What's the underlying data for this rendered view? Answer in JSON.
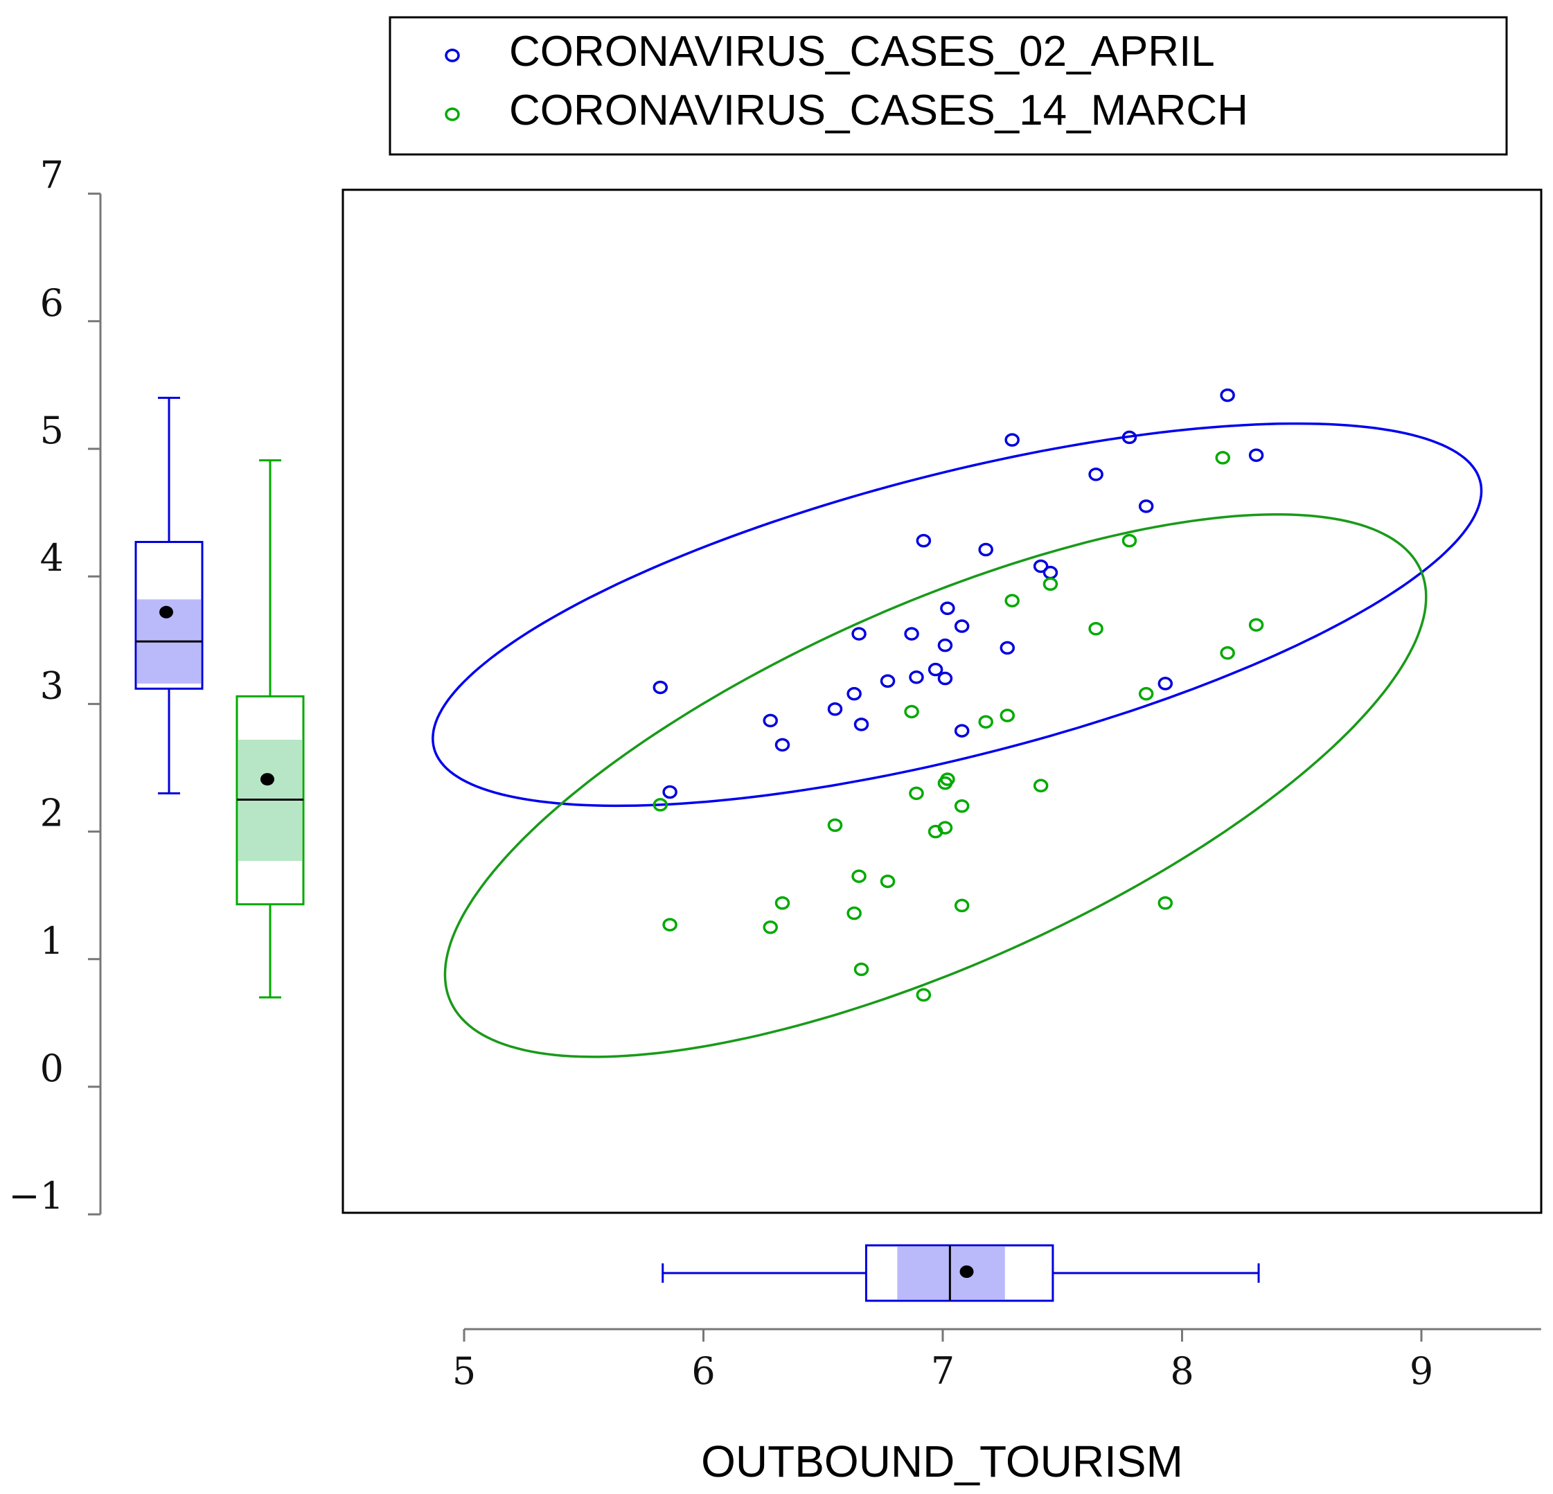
{
  "chart_data": {
    "type": "scatter",
    "xlabel": "OUTBOUND_TOURISM",
    "ylabel": "",
    "xlim": [
      5,
      9.5
    ],
    "ylim": [
      -1,
      7
    ],
    "xticks": [
      5,
      6,
      7,
      8,
      9
    ],
    "yticks": [
      -1,
      0,
      1,
      2,
      3,
      4,
      5,
      6,
      7
    ],
    "xtick_labels": [
      "5",
      "6",
      "7",
      "8",
      "9"
    ],
    "ytick_labels": [
      "−1",
      "0",
      "1",
      "2",
      "3",
      "4",
      "5",
      "6",
      "7"
    ],
    "legend_position": "top",
    "legend": [
      "CORONAVIRUS_CASES_02_APRIL",
      "CORONAVIRUS_CASES_14_MARCH"
    ],
    "series": [
      {
        "name": "CORONAVIRUS_CASES_02_APRIL",
        "color": "#0000dd",
        "points": [
          [
            5.82,
            3.13
          ],
          [
            5.86,
            2.31
          ],
          [
            6.28,
            2.87
          ],
          [
            6.33,
            2.68
          ],
          [
            6.55,
            2.96
          ],
          [
            6.63,
            3.08
          ],
          [
            6.65,
            3.55
          ],
          [
            6.66,
            2.84
          ],
          [
            6.77,
            3.18
          ],
          [
            6.87,
            3.55
          ],
          [
            6.89,
            3.21
          ],
          [
            6.92,
            4.28
          ],
          [
            6.97,
            3.27
          ],
          [
            7.01,
            3.46
          ],
          [
            7.01,
            3.2
          ],
          [
            7.02,
            3.75
          ],
          [
            7.08,
            3.61
          ],
          [
            7.08,
            2.79
          ],
          [
            7.18,
            4.21
          ],
          [
            7.27,
            3.44
          ],
          [
            7.29,
            5.07
          ],
          [
            7.41,
            4.08
          ],
          [
            7.45,
            4.03
          ],
          [
            7.64,
            4.8
          ],
          [
            7.78,
            5.09
          ],
          [
            7.85,
            4.55
          ],
          [
            7.93,
            3.16
          ],
          [
            8.19,
            5.42
          ],
          [
            8.31,
            4.95
          ]
        ],
        "ellipse": {
          "cx": 7.06,
          "cy": 3.7,
          "half_axes": [
            2.45,
            1.02
          ],
          "angle_deg": 29.5
        },
        "boxplot": {
          "min": 2.3,
          "q1": 3.12,
          "median": 3.49,
          "q3": 4.27,
          "max": 5.4,
          "mean": 3.72,
          "ci": [
            3.16,
            3.82
          ]
        }
      },
      {
        "name": "CORONAVIRUS_CASES_14_MARCH",
        "color": "#00aa00",
        "points": [
          [
            5.82,
            2.21
          ],
          [
            5.86,
            1.27
          ],
          [
            6.28,
            1.25
          ],
          [
            6.33,
            1.44
          ],
          [
            6.55,
            2.05
          ],
          [
            6.63,
            1.36
          ],
          [
            6.65,
            1.65
          ],
          [
            6.66,
            0.92
          ],
          [
            6.77,
            1.61
          ],
          [
            6.87,
            2.94
          ],
          [
            6.89,
            2.3
          ],
          [
            6.92,
            0.72
          ],
          [
            6.97,
            2.0
          ],
          [
            7.01,
            2.38
          ],
          [
            7.01,
            2.03
          ],
          [
            7.02,
            2.41
          ],
          [
            7.08,
            2.2
          ],
          [
            7.08,
            1.42
          ],
          [
            7.18,
            2.86
          ],
          [
            7.27,
            2.91
          ],
          [
            7.29,
            3.81
          ],
          [
            7.41,
            2.36
          ],
          [
            7.45,
            3.94
          ],
          [
            7.64,
            3.59
          ],
          [
            7.78,
            4.28
          ],
          [
            7.85,
            3.08
          ],
          [
            7.93,
            1.44
          ],
          [
            8.17,
            4.93
          ],
          [
            8.19,
            3.4
          ],
          [
            8.31,
            3.62
          ]
        ],
        "ellipse": {
          "cx": 6.97,
          "cy": 2.36,
          "half_axes": [
            2.72,
            1.15
          ],
          "angle_deg": 46.5
        },
        "boxplot": {
          "min": 0.7,
          "q1": 1.43,
          "median": 2.25,
          "q3": 3.06,
          "max": 4.91,
          "mean": 2.41,
          "ci": [
            1.77,
            2.72
          ]
        }
      }
    ],
    "x_boxplot": {
      "color": "#0000dd",
      "min": 5.83,
      "q1": 6.68,
      "median": 7.03,
      "q3": 7.46,
      "max": 8.32,
      "mean": 7.1,
      "ci": [
        6.81,
        7.26
      ]
    }
  }
}
